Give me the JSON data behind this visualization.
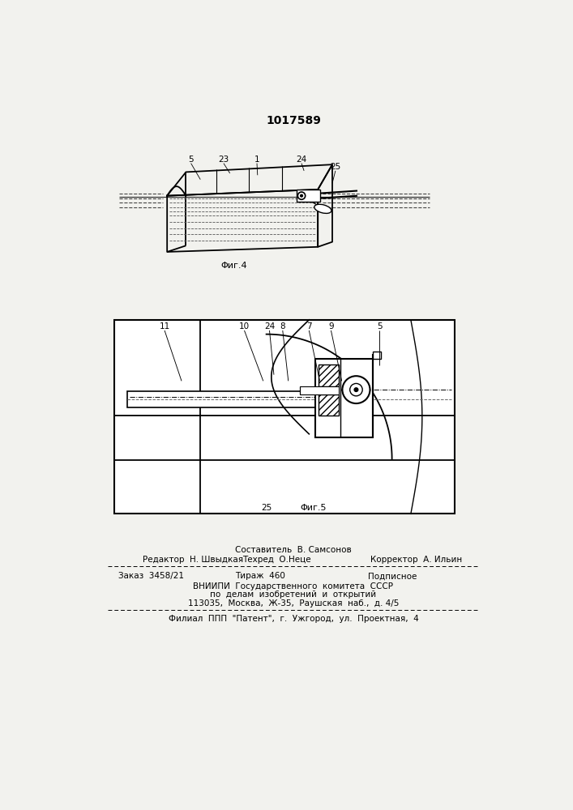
{
  "patent_number": "1017589",
  "bg_color": "#f2f2ee",
  "fig4_caption": "Φиг.4",
  "fig5_caption": "Φиг.5",
  "footer_row0": "Составитель  В. Самсонов",
  "footer_editor": "Редактор  Н. Швыдкая",
  "footer_techred": "Техред  О.Неце",
  "footer_corrector": "Корректор  А. Ильин",
  "footer_order": "Заказ  3458/21",
  "footer_tirazh": "Тираж  460",
  "footer_podp": "Подписное",
  "footer_vniip1": "ВНИИПИ  Государственного  комитета  СССР",
  "footer_vniip2": "по  делам  изобретений  и  открытий",
  "footer_addr": "113035,  Москва,  Ж-35,  Раушская  наб.,  д. 4/5",
  "footer_filial": "Филиал  ППП  \"Патент\",  г.  Ужгород,  ул.  Проектная,  4"
}
